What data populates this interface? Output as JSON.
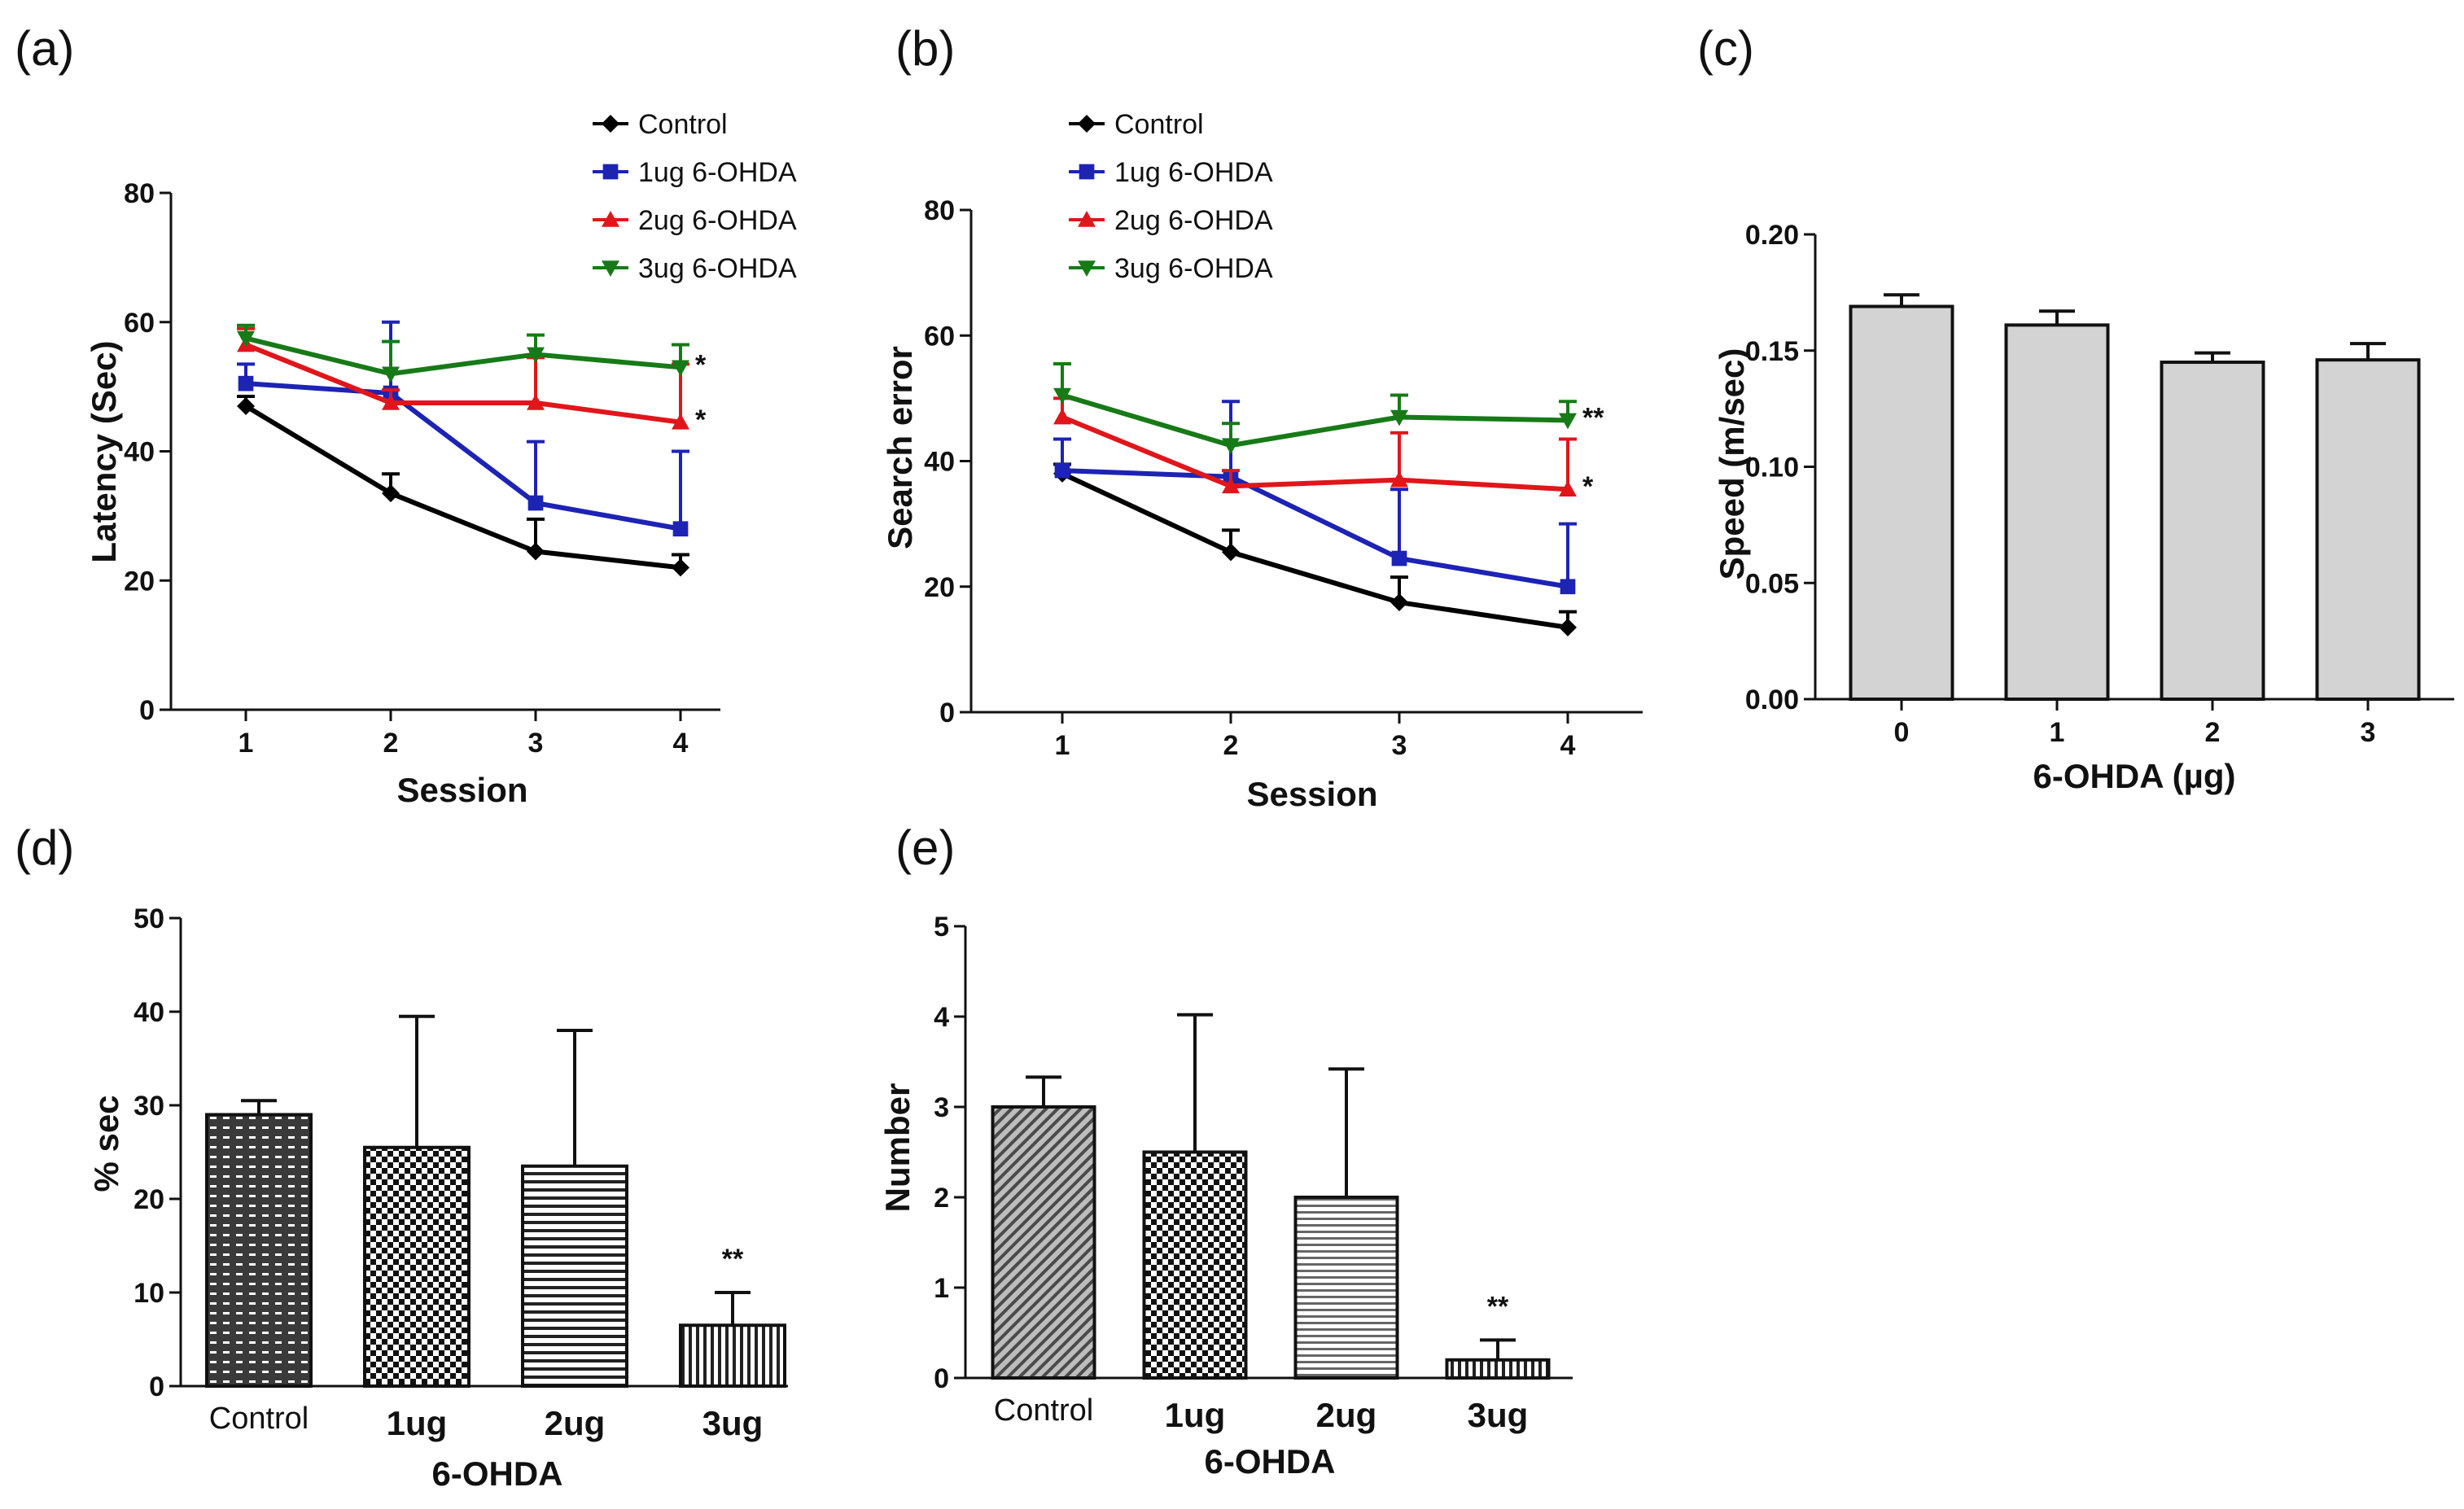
{
  "chart_data": [
    {
      "panel": "(a)",
      "type": "line",
      "xlabel": "Session",
      "ylabel": "Latency (Sec)",
      "x": [
        1,
        2,
        3,
        4
      ],
      "ylim": [
        0,
        80
      ],
      "yticks": [
        "0",
        "20",
        "40",
        "60",
        "80"
      ],
      "xticks": [
        "1",
        "2",
        "3",
        "4"
      ],
      "series": [
        {
          "name": "Control",
          "color": "#000000",
          "marker": "diamond",
          "values": [
            47,
            33.5,
            24.5,
            22
          ],
          "errors": [
            1.5,
            3,
            5,
            2
          ],
          "annotations": [
            "",
            "",
            "",
            ""
          ]
        },
        {
          "name": "1ug 6-OHDA",
          "color": "#1d23b5",
          "marker": "square",
          "values": [
            50.5,
            49,
            32,
            28
          ],
          "errors": [
            3,
            11,
            9.5,
            12
          ],
          "annotations": [
            "",
            "",
            "",
            ""
          ]
        },
        {
          "name": "2ug 6-OHDA",
          "color": "#e0161b",
          "marker": "triangle-up",
          "values": [
            56.5,
            47.5,
            47.5,
            44.5
          ],
          "errors": [
            2.5,
            2,
            7,
            9
          ],
          "annotations": [
            "",
            "",
            "",
            "*"
          ]
        },
        {
          "name": "3ug 6-OHDA",
          "color": "#177a17",
          "marker": "triangle-down",
          "values": [
            57.5,
            52,
            55,
            53
          ],
          "errors": [
            2,
            5,
            3,
            3.5
          ],
          "annotations": [
            "",
            "",
            "",
            "*"
          ]
        }
      ]
    },
    {
      "panel": "(b)",
      "type": "line",
      "xlabel": "Session",
      "ylabel": "Search error",
      "x": [
        1,
        2,
        3,
        4
      ],
      "ylim": [
        0,
        80
      ],
      "yticks": [
        "0",
        "20",
        "40",
        "60",
        "80"
      ],
      "xticks": [
        "1",
        "2",
        "3",
        "4"
      ],
      "series": [
        {
          "name": "Control",
          "color": "#000000",
          "marker": "diamond",
          "values": [
            38,
            25.5,
            17.5,
            13.5
          ],
          "errors": [
            1.5,
            3.5,
            4,
            2.5
          ],
          "annotations": [
            "",
            "",
            "",
            ""
          ]
        },
        {
          "name": "1ug 6-OHDA",
          "color": "#1d23b5",
          "marker": "square",
          "values": [
            38.5,
            37.5,
            24.5,
            20
          ],
          "errors": [
            5,
            12,
            11,
            10
          ],
          "annotations": [
            "",
            "",
            "",
            ""
          ]
        },
        {
          "name": "2ug 6-OHDA",
          "color": "#e0161b",
          "marker": "triangle-up",
          "values": [
            47,
            36,
            37,
            35.5
          ],
          "errors": [
            3,
            2.5,
            7.5,
            8
          ],
          "annotations": [
            "",
            "",
            "",
            "*"
          ]
        },
        {
          "name": "3ug 6-OHDA",
          "color": "#177a17",
          "marker": "triangle-down",
          "values": [
            50.5,
            42.5,
            47,
            46.5
          ],
          "errors": [
            5,
            3.5,
            3.5,
            3
          ],
          "annotations": [
            "",
            "",
            "",
            "**"
          ]
        }
      ]
    },
    {
      "panel": "(c)",
      "type": "bar",
      "xlabel": "6-OHDA (µg)",
      "ylabel": "Speed (m/sec)",
      "categories": [
        "0",
        "1",
        "2",
        "3"
      ],
      "values": [
        0.169,
        0.161,
        0.145,
        0.146
      ],
      "errors": [
        0.005,
        0.006,
        0.004,
        0.007
      ],
      "ylim": [
        0,
        0.2
      ],
      "yticks": [
        "0.00",
        "0.05",
        "0.10",
        "0.15",
        "0.20"
      ],
      "annotations": [
        "",
        "",
        "",
        ""
      ],
      "fill": "#d3d3d3"
    },
    {
      "panel": "(d)",
      "type": "bar",
      "xlabel": "6-OHDA",
      "ylabel": "% sec",
      "categories": [
        "Control",
        "1ug",
        "2ug",
        "3ug"
      ],
      "values": [
        29,
        25.5,
        23.5,
        6.5
      ],
      "errors": [
        1.5,
        14,
        14.5,
        3.5
      ],
      "ylim": [
        0,
        50
      ],
      "yticks": [
        "0",
        "10",
        "20",
        "30",
        "40",
        "50"
      ],
      "annotations": [
        "",
        "",
        "",
        "**"
      ],
      "patterns": [
        "dash",
        "checker",
        "hstripe",
        "vstripe"
      ]
    },
    {
      "panel": "(e)",
      "type": "bar",
      "xlabel": "6-OHDA",
      "ylabel": "Number",
      "categories": [
        "Control",
        "1ug",
        "2ug",
        "3ug"
      ],
      "values": [
        3,
        2.5,
        2,
        0.2
      ],
      "errors": [
        0.33,
        1.52,
        1.42,
        0.22
      ],
      "ylim": [
        0,
        5
      ],
      "yticks": [
        "0",
        "1",
        "2",
        "3",
        "4",
        "5"
      ],
      "annotations": [
        "",
        "",
        "",
        "**"
      ],
      "patterns": [
        "diag",
        "checker",
        "hfine",
        "vstripe"
      ]
    }
  ]
}
